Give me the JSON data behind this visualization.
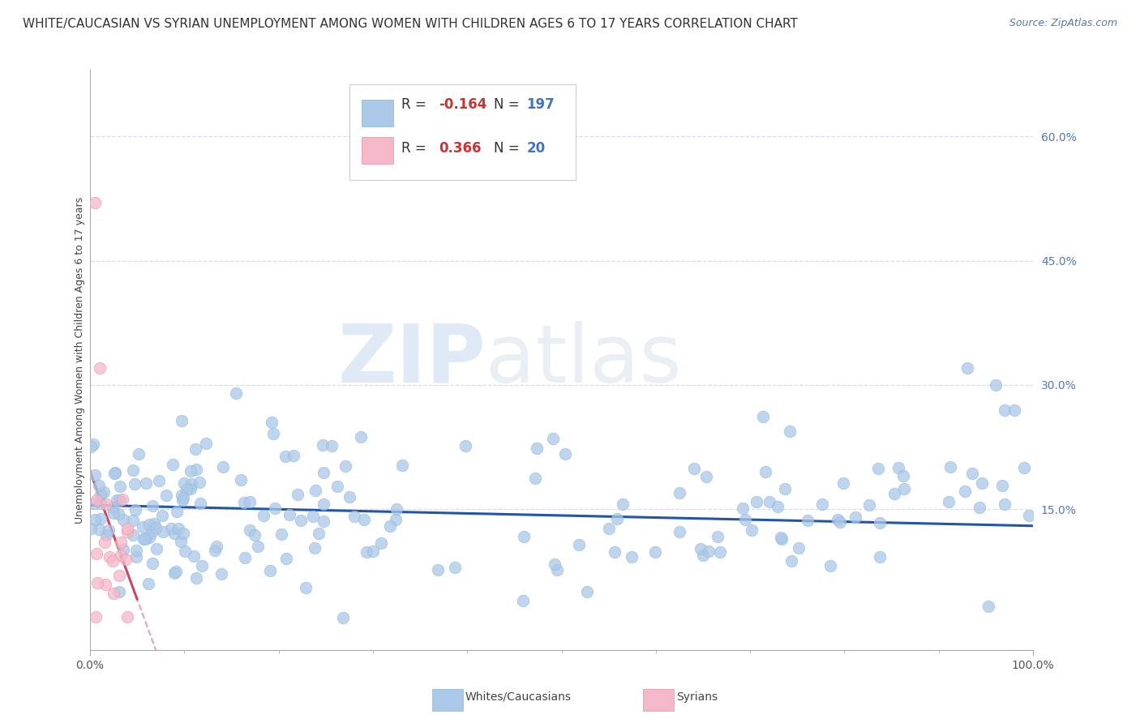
{
  "title": "WHITE/CAUCASIAN VS SYRIAN UNEMPLOYMENT AMONG WOMEN WITH CHILDREN AGES 6 TO 17 YEARS CORRELATION CHART",
  "source": "Source: ZipAtlas.com",
  "ylabel": "Unemployment Among Women with Children Ages 6 to 17 years",
  "xlim": [
    0,
    1.0
  ],
  "ylim": [
    -0.02,
    0.68
  ],
  "xtick_positions": [
    0.0,
    0.5,
    1.0
  ],
  "xtick_labels": [
    "0.0%",
    "",
    "100.0%"
  ],
  "ytick_values": [
    0.15,
    0.3,
    0.45,
    0.6
  ],
  "ytick_labels": [
    "15.0%",
    "30.0%",
    "45.0%",
    "60.0%"
  ],
  "white_R": -0.164,
  "white_N": 197,
  "syrian_R": 0.366,
  "syrian_N": 20,
  "white_dot_color": "#aac8e8",
  "syrian_dot_color": "#f5b8c8",
  "white_line_color": "#2255aa",
  "syrian_line_color": "#cc4466",
  "syrian_dashed_color": "#e8a0b0",
  "white_dashed_color": "#c8d8e8",
  "grid_color": "#d8d8e8",
  "background_color": "#ffffff",
  "legend_label_white": "Whites/Caucasians",
  "legend_label_syrian": "Syrians",
  "title_fontsize": 11,
  "axis_label_fontsize": 9,
  "tick_fontsize": 10,
  "legend_fontsize": 12,
  "watermark_zip": "ZIP",
  "watermark_atlas": "atlas",
  "seed": 99
}
